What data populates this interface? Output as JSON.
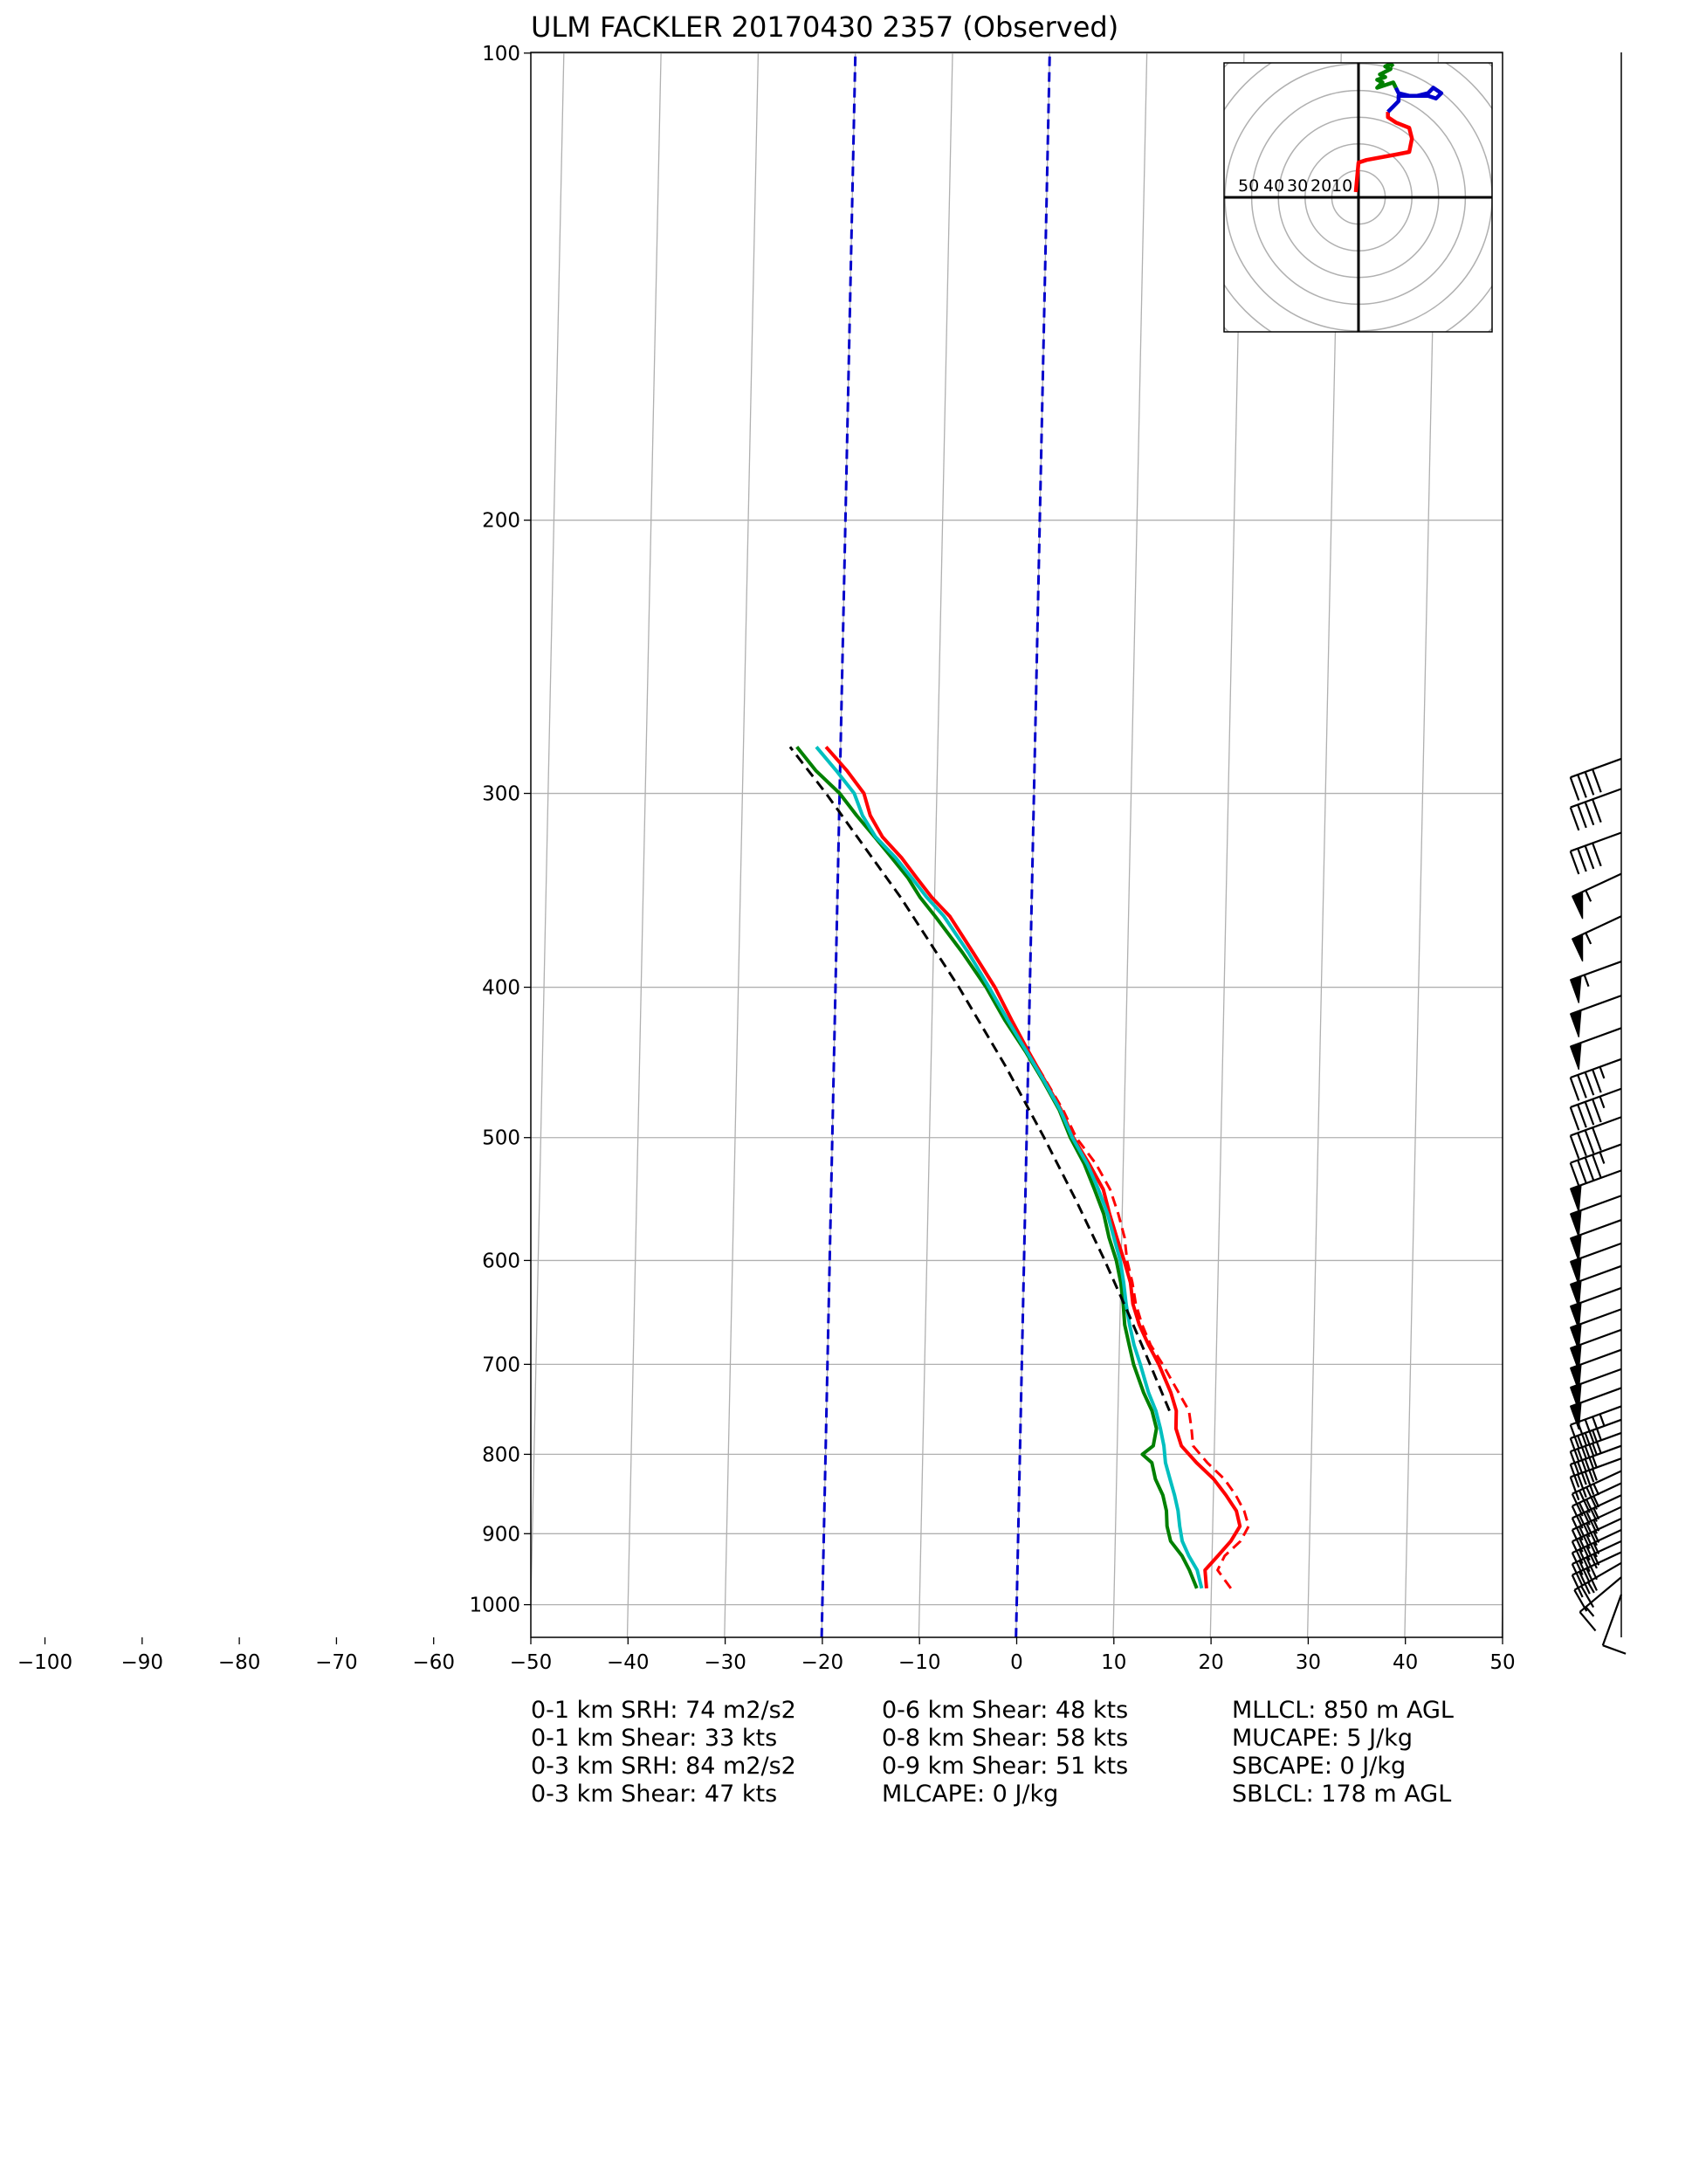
{
  "chart_data": {
    "type": "skew-t",
    "title": "ULM FACKLER 20170430 2357   (Observed)",
    "xlabel": "",
    "ylabel": "",
    "xlim": [
      -100,
      50
    ],
    "ylim": [
      1050,
      100
    ],
    "xticks": [
      "−100",
      "−90",
      "−80",
      "−70",
      "−60",
      "−50",
      "−40",
      "−30",
      "−20",
      "−10",
      "0",
      "10",
      "20",
      "30",
      "40",
      "50"
    ],
    "yticks": [
      "100",
      "200",
      "300",
      "400",
      "500",
      "600",
      "700",
      "800",
      "900",
      "1000"
    ],
    "grid": true,
    "series": [
      {
        "color": "#ff0000",
        "style": "solid",
        "points": [
          [
            976,
            19.5
          ],
          [
            950,
            19.3
          ],
          [
            930,
            20.6
          ],
          [
            910,
            21.9
          ],
          [
            890,
            22.8
          ],
          [
            870,
            22.4
          ],
          [
            850,
            21.3
          ],
          [
            830,
            20.0
          ],
          [
            810,
            18.2
          ],
          [
            790,
            16.6
          ],
          [
            770,
            16.0
          ],
          [
            750,
            16.0
          ],
          [
            730,
            15.4
          ],
          [
            700,
            14.1
          ],
          [
            680,
            13.0
          ],
          [
            660,
            12.0
          ],
          [
            640,
            11.3
          ],
          [
            620,
            11.0
          ],
          [
            600,
            10.3
          ],
          [
            580,
            9.5
          ],
          [
            560,
            8.7
          ],
          [
            540,
            8.0
          ],
          [
            520,
            6.5
          ],
          [
            500,
            4.8
          ],
          [
            480,
            3.5
          ],
          [
            460,
            1.8
          ],
          [
            440,
            0.0
          ],
          [
            420,
            -1.8
          ],
          [
            400,
            -3.6
          ],
          [
            380,
            -5.9
          ],
          [
            360,
            -8.4
          ],
          [
            350,
            -10.3
          ],
          [
            340,
            -11.9
          ],
          [
            330,
            -13.5
          ],
          [
            320,
            -15.5
          ],
          [
            310,
            -16.8
          ],
          [
            300,
            -17.5
          ],
          [
            290,
            -19.3
          ],
          [
            280,
            -21.5
          ]
        ]
      },
      {
        "color": "#ff0000",
        "style": "dashed",
        "points": [
          [
            976,
            22.0
          ],
          [
            950,
            20.6
          ],
          [
            930,
            21.3
          ],
          [
            910,
            22.9
          ],
          [
            890,
            23.7
          ],
          [
            870,
            23.2
          ],
          [
            850,
            22.3
          ],
          [
            830,
            21.1
          ],
          [
            810,
            19.3
          ],
          [
            790,
            17.8
          ],
          [
            770,
            17.6
          ],
          [
            750,
            17.3
          ],
          [
            730,
            16.2
          ],
          [
            700,
            14.5
          ],
          [
            680,
            13.2
          ],
          [
            660,
            12.3
          ],
          [
            640,
            11.6
          ],
          [
            620,
            11.2
          ],
          [
            600,
            10.6
          ],
          [
            580,
            10.3
          ],
          [
            560,
            9.6
          ],
          [
            540,
            8.7
          ],
          [
            520,
            7.2
          ],
          [
            500,
            5.1
          ],
          [
            480,
            3.7
          ],
          [
            460,
            1.9
          ],
          [
            440,
            0.0
          ]
        ]
      },
      {
        "color": "#008000",
        "style": "solid",
        "points": [
          [
            976,
            18.5
          ],
          [
            950,
            17.7
          ],
          [
            930,
            16.9
          ],
          [
            910,
            15.7
          ],
          [
            890,
            15.3
          ],
          [
            870,
            15.2
          ],
          [
            850,
            14.8
          ],
          [
            830,
            14.0
          ],
          [
            810,
            13.6
          ],
          [
            800,
            12.6
          ],
          [
            790,
            13.7
          ],
          [
            770,
            14.0
          ],
          [
            750,
            13.5
          ],
          [
            730,
            12.6
          ],
          [
            700,
            11.5
          ],
          [
            680,
            11.0
          ],
          [
            660,
            10.5
          ],
          [
            640,
            10.3
          ],
          [
            620,
            10.0
          ],
          [
            600,
            9.5
          ],
          [
            580,
            8.7
          ],
          [
            560,
            8.1
          ],
          [
            540,
            7.1
          ],
          [
            520,
            6.0
          ],
          [
            500,
            4.5
          ],
          [
            480,
            3.3
          ],
          [
            460,
            1.6
          ],
          [
            440,
            -0.3
          ],
          [
            420,
            -2.5
          ],
          [
            400,
            -4.5
          ],
          [
            380,
            -7.0
          ],
          [
            360,
            -9.9
          ],
          [
            350,
            -11.5
          ],
          [
            340,
            -12.8
          ],
          [
            330,
            -14.5
          ],
          [
            320,
            -16.3
          ],
          [
            310,
            -18.2
          ],
          [
            300,
            -20.0
          ],
          [
            290,
            -22.5
          ],
          [
            280,
            -24.5
          ]
        ]
      },
      {
        "color": "#00bfbf",
        "style": "solid",
        "points": [
          [
            976,
            19.0
          ],
          [
            950,
            18.5
          ],
          [
            930,
            17.6
          ],
          [
            910,
            16.9
          ],
          [
            890,
            16.6
          ],
          [
            870,
            16.4
          ],
          [
            850,
            16.0
          ],
          [
            830,
            15.5
          ],
          [
            810,
            15.0
          ],
          [
            790,
            14.8
          ],
          [
            770,
            14.4
          ],
          [
            750,
            13.9
          ],
          [
            730,
            13.1
          ],
          [
            700,
            12.2
          ],
          [
            680,
            11.5
          ],
          [
            660,
            11.0
          ],
          [
            640,
            10.6
          ],
          [
            620,
            10.3
          ],
          [
            600,
            9.9
          ],
          [
            580,
            9.2
          ],
          [
            560,
            8.5
          ],
          [
            540,
            7.5
          ],
          [
            520,
            6.3
          ],
          [
            500,
            4.7
          ],
          [
            480,
            3.4
          ],
          [
            460,
            1.7
          ],
          [
            440,
            -0.2
          ],
          [
            420,
            -2.2
          ],
          [
            400,
            -4.2
          ],
          [
            380,
            -6.4
          ],
          [
            360,
            -9.0
          ],
          [
            350,
            -10.8
          ],
          [
            340,
            -12.4
          ],
          [
            330,
            -14.1
          ],
          [
            320,
            -16.2
          ],
          [
            310,
            -17.6
          ],
          [
            300,
            -18.5
          ],
          [
            290,
            -20.4
          ],
          [
            280,
            -22.5
          ]
        ]
      },
      {
        "color": "#000000",
        "style": "dashed",
        "points": [
          [
            750,
            15.3
          ],
          [
            700,
            13.2
          ],
          [
            650,
            10.9
          ],
          [
            600,
            8.3
          ],
          [
            550,
            5.3
          ],
          [
            500,
            1.8
          ],
          [
            450,
            -2.3
          ],
          [
            400,
            -7.3
          ],
          [
            350,
            -13.5
          ],
          [
            300,
            -21.4
          ],
          [
            280,
            -25.2
          ]
        ]
      }
    ],
    "isotherms_highlighted": [
      {
        "temp_c": -20,
        "color": "#0000cc"
      },
      {
        "temp_c": 0,
        "color": "#0000cc"
      }
    ],
    "hodograph": {
      "rings_kts": [
        10,
        20,
        30,
        40,
        50,
        60,
        70
      ],
      "ring_labels": [
        "50",
        "40",
        "30",
        "20",
        "10",
        "10"
      ],
      "segments": [
        {
          "color": "#ff0000",
          "points": [
            [
              -1,
              2
            ],
            [
              0,
              13
            ],
            [
              3,
              14
            ],
            [
              14,
              16
            ],
            [
              19,
              17
            ],
            [
              20,
              22
            ],
            [
              19,
              26
            ],
            [
              14,
              28
            ],
            [
              11,
              30
            ],
            [
              11,
              32
            ]
          ]
        },
        {
          "color": "#0000cc",
          "points": [
            [
              11,
              32
            ],
            [
              13,
              34
            ],
            [
              15,
              36
            ],
            [
              15,
              38
            ],
            [
              22,
              38
            ],
            [
              26,
              39
            ],
            [
              28,
              41
            ],
            [
              31,
              39
            ],
            [
              29,
              37
            ],
            [
              26,
              38
            ],
            [
              22,
              38
            ],
            [
              19,
              38
            ],
            [
              15,
              39
            ],
            [
              14,
              41
            ]
          ]
        },
        {
          "color": "#008000",
          "points": [
            [
              14,
              41
            ],
            [
              13,
              43
            ],
            [
              7,
              41
            ],
            [
              9,
              43
            ],
            [
              7,
              44
            ],
            [
              10,
              45
            ],
            [
              8,
              46
            ],
            [
              12,
              48
            ],
            [
              10,
              49
            ],
            [
              12,
              50
            ],
            [
              13,
              49
            ]
          ]
        }
      ]
    },
    "wind_barbs": [
      {
        "p": 985,
        "dir": 200,
        "spd": 10
      },
      {
        "p": 960,
        "dir": 230,
        "spd": 15
      },
      {
        "p": 940,
        "dir": 240,
        "spd": 25
      },
      {
        "p": 925,
        "dir": 245,
        "spd": 30
      },
      {
        "p": 910,
        "dir": 245,
        "spd": 35
      },
      {
        "p": 895,
        "dir": 245,
        "spd": 35
      },
      {
        "p": 880,
        "dir": 245,
        "spd": 35
      },
      {
        "p": 865,
        "dir": 245,
        "spd": 35
      },
      {
        "p": 850,
        "dir": 245,
        "spd": 35
      },
      {
        "p": 835,
        "dir": 245,
        "spd": 35
      },
      {
        "p": 820,
        "dir": 245,
        "spd": 35
      },
      {
        "p": 805,
        "dir": 250,
        "spd": 35
      },
      {
        "p": 790,
        "dir": 250,
        "spd": 35
      },
      {
        "p": 775,
        "dir": 250,
        "spd": 35
      },
      {
        "p": 760,
        "dir": 250,
        "spd": 40
      },
      {
        "p": 745,
        "dir": 250,
        "spd": 45
      },
      {
        "p": 725,
        "dir": 250,
        "spd": 50
      },
      {
        "p": 705,
        "dir": 250,
        "spd": 50
      },
      {
        "p": 685,
        "dir": 250,
        "spd": 50
      },
      {
        "p": 665,
        "dir": 250,
        "spd": 50
      },
      {
        "p": 645,
        "dir": 250,
        "spd": 50
      },
      {
        "p": 625,
        "dir": 250,
        "spd": 50
      },
      {
        "p": 605,
        "dir": 250,
        "spd": 50
      },
      {
        "p": 585,
        "dir": 250,
        "spd": 50
      },
      {
        "p": 565,
        "dir": 250,
        "spd": 50
      },
      {
        "p": 545,
        "dir": 250,
        "spd": 50
      },
      {
        "p": 525,
        "dir": 250,
        "spd": 50
      },
      {
        "p": 505,
        "dir": 250,
        "spd": 45
      },
      {
        "p": 485,
        "dir": 250,
        "spd": 40
      },
      {
        "p": 465,
        "dir": 250,
        "spd": 45
      },
      {
        "p": 445,
        "dir": 250,
        "spd": 45
      },
      {
        "p": 425,
        "dir": 250,
        "spd": 50
      },
      {
        "p": 405,
        "dir": 250,
        "spd": 50
      },
      {
        "p": 385,
        "dir": 250,
        "spd": 55
      },
      {
        "p": 360,
        "dir": 245,
        "spd": 55
      },
      {
        "p": 338,
        "dir": 245,
        "spd": 55
      },
      {
        "p": 318,
        "dir": 250,
        "spd": 40
      },
      {
        "p": 298,
        "dir": 250,
        "spd": 40
      },
      {
        "p": 285,
        "dir": 250,
        "spd": 40
      }
    ]
  },
  "stats": {
    "col1": [
      "0-1 km SRH: 74 m2/s2",
      "0-1 km Shear: 33 kts",
      "0-3 km SRH: 84 m2/s2",
      "0-3 km Shear: 47 kts"
    ],
    "col2": [
      "0-6 km Shear: 48 kts",
      "0-8 km Shear: 58 kts",
      "0-9 km Shear: 51 kts",
      "MLCAPE: 0 J/kg"
    ],
    "col3": [
      "MLLCL: 850 m AGL",
      "MUCAPE: 5 J/kg",
      "SBCAPE: 0 J/kg",
      "SBLCL: 178 m AGL"
    ]
  },
  "colors": {
    "temperature": "#ff0000",
    "dewpoint": "#008000",
    "wetbulb": "#00bfbf",
    "parcel": "#000000",
    "isotherm_highlight": "#0000cc",
    "grid": "#b0b0b0"
  }
}
